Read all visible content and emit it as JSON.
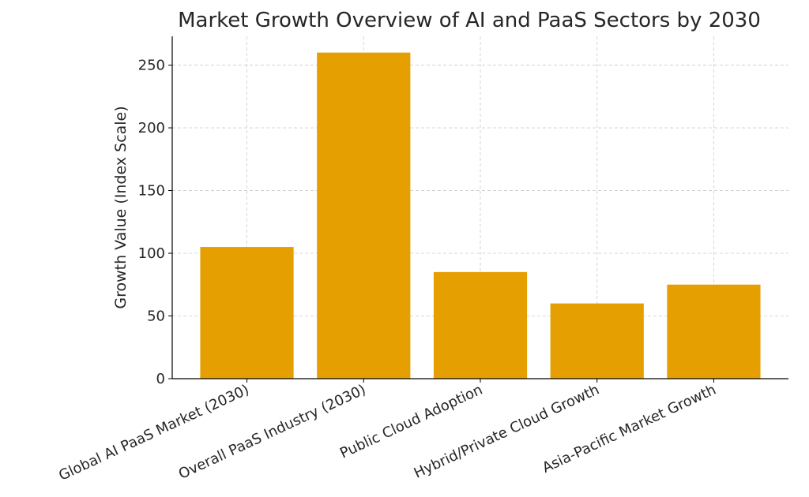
{
  "chart_data": {
    "type": "bar",
    "title": "Market Growth Overview of AI and PaaS Sectors by 2030",
    "xlabel": "",
    "ylabel": "Growth Value (Index Scale)",
    "categories": [
      "Global AI PaaS Market (2030)",
      "Overall PaaS Industry (2030)",
      "Public Cloud Adoption",
      "Hybrid/Private Cloud Growth",
      "Asia-Pacific Market Growth"
    ],
    "values": [
      105,
      260,
      85,
      60,
      75
    ],
    "ylim": [
      0,
      273
    ],
    "yticks": [
      0,
      50,
      100,
      150,
      200,
      250
    ],
    "grid": true,
    "bar_color": "#E69F00",
    "x_tick_rotation_deg": 25
  }
}
